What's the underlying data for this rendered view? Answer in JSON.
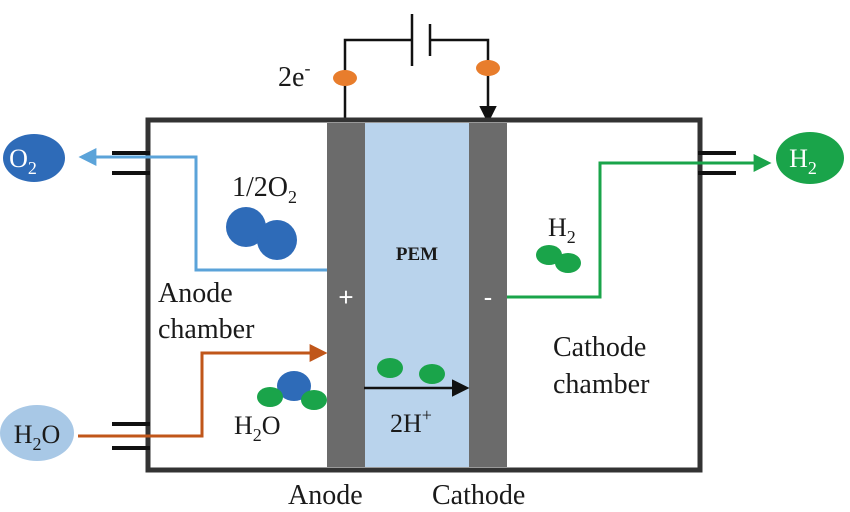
{
  "labels": {
    "electrons": "2e",
    "electrons_sup": "-",
    "pem": "PEM",
    "anode_sign": "+",
    "cathode_sign": "-",
    "half_o2_prefix": "1/2O",
    "half_o2_sub": "2",
    "h2_inside": "H",
    "h2_inside_sub": "2",
    "anode_chamber_line1": "Anode",
    "anode_chamber_line2": "chamber",
    "cathode_chamber_line1": "Cathode",
    "cathode_chamber_line2": "chamber",
    "water_in": "H",
    "water_in_sub": "2",
    "water_in_tail": "O",
    "water_mol": "H",
    "water_mol_sub": "2",
    "water_mol_tail": "O",
    "protons": "2H",
    "protons_sup": "+",
    "anode": "Anode",
    "cathode": "Cathode",
    "o2_out": "O",
    "o2_out_sub": "2",
    "h2_out": "H",
    "h2_out_sub": "2"
  },
  "colors": {
    "oxygen": "#2e6bb8",
    "hydrogen": "#1aa44a",
    "water": "#a8c8e6",
    "water_flow": "#c0561a",
    "o2_flow": "#5ba3d9",
    "h2_flow": "#1aa44a",
    "electrode": "#6b6b6b",
    "pem": "#b9d3ec",
    "electron": "#e87d2c"
  }
}
